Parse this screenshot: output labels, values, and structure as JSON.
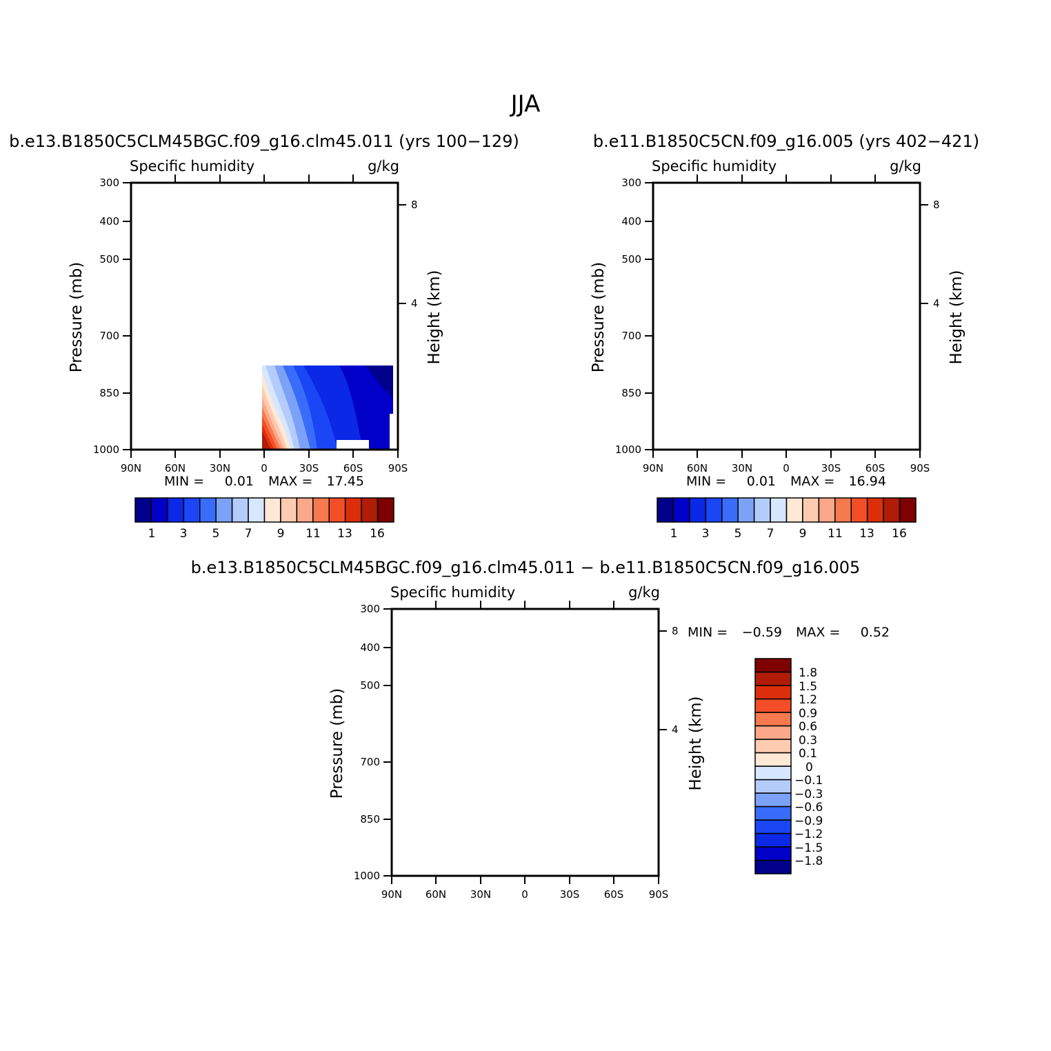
{
  "figure": {
    "title": "JJA"
  },
  "palettes": {
    "full": [
      "#00008b",
      "#0000c8",
      "#0a28e6",
      "#1a46f5",
      "#3a6cfa",
      "#7ca2f8",
      "#b4ccfc",
      "#d6e7ff",
      "#ffe8d6",
      "#fccbb0",
      "#fba88a",
      "#f77a4e",
      "#f34e28",
      "#dd2e0b",
      "#b01c06",
      "#7f0000"
    ],
    "diff": [
      "#00008b",
      "#0000c8",
      "#0a28e6",
      "#1a46f5",
      "#3a6cfa",
      "#7ca2f8",
      "#b4ccfc",
      "#d6e7ff",
      "#ffe8d6",
      "#fccbb0",
      "#fba88a",
      "#f77a4e",
      "#f34e28",
      "#dd2e0b",
      "#b01c06",
      "#7f0000"
    ]
  },
  "panels": [
    {
      "id": "top-left",
      "title": "b.e13.B1850C5CLM45BGC.f09_g16.clm45.011 (yrs 100−129)",
      "left_label": "Specific humidity",
      "right_label": "g/kg",
      "min_label": "MIN =",
      "min_value": "0.01",
      "max_label": "MAX =",
      "max_value": "17.45",
      "colorbar_labels": [
        "1",
        "3",
        "5",
        "7",
        "9",
        "11",
        "13",
        "16"
      ]
    },
    {
      "id": "top-right",
      "title": "b.e11.B1850C5CN.f09_g16.005 (yrs 402−421)",
      "left_label": "Specific humidity",
      "right_label": "g/kg",
      "min_label": "MIN =",
      "min_value": "0.01",
      "max_label": "MAX =",
      "max_value": "16.94",
      "colorbar_labels": [
        "1",
        "3",
        "5",
        "7",
        "9",
        "11",
        "13",
        "16"
      ]
    },
    {
      "id": "bottom",
      "title": "b.e13.B1850C5CLM45BGC.f09_g16.clm45.011 − b.e11.B1850C5CN.f09_g16.005",
      "left_label": "Specific humidity",
      "right_label": "g/kg",
      "min_label": "MIN =",
      "min_value": "−0.59",
      "max_label": "MAX =",
      "max_value": "0.52",
      "colorbar_labels": [
        "1.8",
        "1.5",
        "1.2",
        "0.9",
        "0.6",
        "0.3",
        "0.1",
        "0",
        "−0.1",
        "−0.3",
        "−0.6",
        "−0.9",
        "−1.2",
        "−1.5",
        "−1.8"
      ]
    }
  ],
  "chart_data": [
    {
      "type": "heatmap",
      "title": "b.e13.B1850C5CLM45BGC.f09_g16.clm45.011 (yrs 100−129)",
      "subtitle_left": "Specific humidity",
      "units": "g/kg",
      "xlabel": "",
      "ylabel": "Pressure (mb)",
      "ylabel_right": "Height (km)",
      "x_ticks": [
        "90N",
        "60N",
        "30N",
        "0",
        "30S",
        "60S",
        "90S"
      ],
      "y_ticks": [
        300,
        400,
        500,
        700,
        850,
        1000
      ],
      "y_right_ticks": [
        8,
        4
      ],
      "xlim": [
        90,
        -90
      ],
      "ylim": [
        1000,
        300
      ],
      "y_scale": "log",
      "min": 0.01,
      "max": 17.45,
      "contour_levels": [
        1,
        2,
        3,
        4,
        5,
        6,
        7,
        8,
        9,
        10,
        11,
        12,
        13,
        14,
        16
      ],
      "peak": {
        "lat": 10,
        "pressure": 1000,
        "value": 17.45
      }
    },
    {
      "type": "heatmap",
      "title": "b.e11.B1850C5CN.f09_g16.005 (yrs 402−421)",
      "subtitle_left": "Specific humidity",
      "units": "g/kg",
      "xlabel": "",
      "ylabel": "Pressure (mb)",
      "ylabel_right": "Height (km)",
      "x_ticks": [
        "90N",
        "60N",
        "30N",
        "0",
        "30S",
        "60S",
        "90S"
      ],
      "y_ticks": [
        300,
        400,
        500,
        700,
        850,
        1000
      ],
      "y_right_ticks": [
        8,
        4
      ],
      "xlim": [
        90,
        -90
      ],
      "ylim": [
        1000,
        300
      ],
      "y_scale": "log",
      "min": 0.01,
      "max": 16.94,
      "contour_levels": [
        1,
        2,
        3,
        4,
        5,
        6,
        7,
        8,
        9,
        10,
        11,
        12,
        13,
        14,
        16
      ],
      "peak": {
        "lat": 10,
        "pressure": 1000,
        "value": 16.94
      }
    },
    {
      "type": "heatmap",
      "title": "b.e13.B1850C5CLM45BGC.f09_g16.clm45.011 − b.e11.B1850C5CN.f09_g16.005",
      "subtitle_left": "Specific humidity",
      "units": "g/kg",
      "xlabel": "",
      "ylabel": "Pressure (mb)",
      "ylabel_right": "Height (km)",
      "x_ticks": [
        "90N",
        "60N",
        "30N",
        "0",
        "30S",
        "60S",
        "90S"
      ],
      "y_ticks": [
        300,
        400,
        500,
        700,
        850,
        1000
      ],
      "y_right_ticks": [
        8,
        4
      ],
      "xlim": [
        90,
        -90
      ],
      "ylim": [
        1000,
        300
      ],
      "y_scale": "log",
      "min": -0.59,
      "max": 0.52,
      "contour_levels": [
        -1.8,
        -1.5,
        -1.2,
        -0.9,
        -0.6,
        -0.3,
        -0.1,
        0,
        0.1,
        0.3,
        0.6,
        0.9,
        1.2,
        1.5,
        1.8
      ]
    }
  ]
}
